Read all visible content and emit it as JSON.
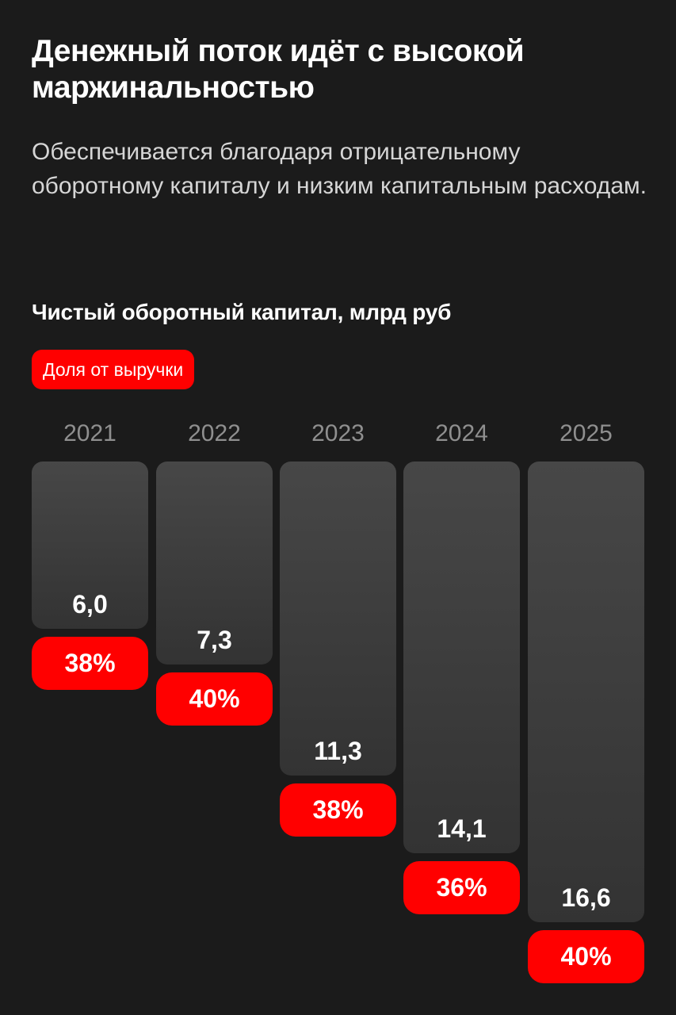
{
  "header": {
    "title": "Денежный поток идёт с высокой маржинальностью",
    "subtitle": "Обеспечивается благодаря отрицательному оборотному капиталу и низким капитальным расходам."
  },
  "chart": {
    "title": "Чистый оборотный капитал, млрд руб",
    "legend_label": "Доля от выручки",
    "colors": {
      "bar_top": "#474747",
      "bar_bottom": "#333333",
      "accent": "#ff0000",
      "background": "#1b1b1b",
      "year_label": "#8f8f8f"
    },
    "columns": [
      {
        "year": "2021",
        "value": "6,0",
        "share": "38%"
      },
      {
        "year": "2022",
        "value": "7,3",
        "share": "40%"
      },
      {
        "year": "2023",
        "value": "11,3",
        "share": "38%"
      },
      {
        "year": "2024",
        "value": "14,1",
        "share": "36%"
      },
      {
        "year": "2025",
        "value": "16,6",
        "share": "40%"
      }
    ]
  },
  "chart_data": {
    "type": "bar",
    "title": "Чистый оборотный капитал, млрд руб",
    "categories": [
      "2021",
      "2022",
      "2023",
      "2024",
      "2025"
    ],
    "series": [
      {
        "name": "Чистый оборотный капитал, млрд руб",
        "values": [
          6.0,
          7.3,
          11.3,
          14.1,
          16.6
        ]
      },
      {
        "name": "Доля от выручки",
        "values": [
          38,
          40,
          38,
          36,
          40
        ],
        "unit": "%"
      }
    ],
    "xlabel": "",
    "ylabel": "млрд руб",
    "orientation": "downward bars from top baseline",
    "grid": false,
    "legend": {
      "position": "top-left",
      "entries": [
        "Доля от выручки"
      ]
    }
  }
}
